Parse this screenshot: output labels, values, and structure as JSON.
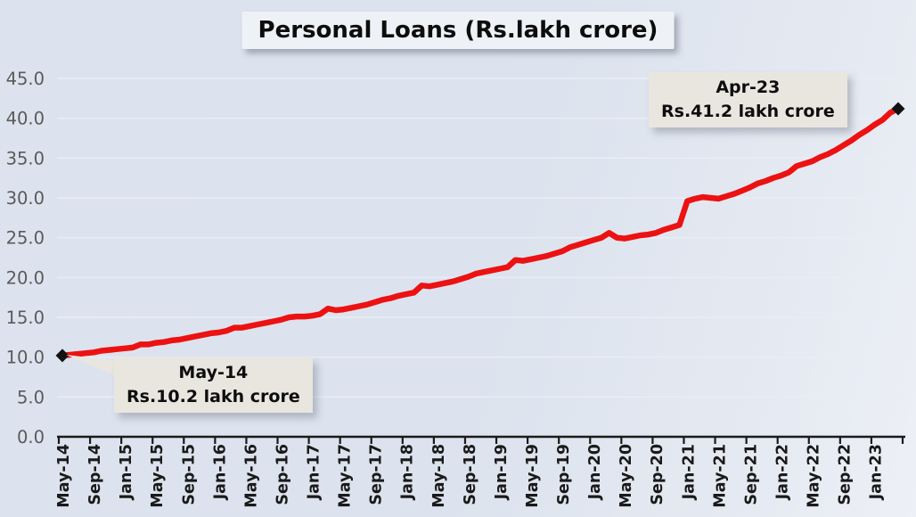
{
  "title": "Personal Loans (Rs.lakh crore)",
  "annotations": {
    "start": {
      "period": "May-14",
      "value_text": "Rs.10.2 lakh crore"
    },
    "end": {
      "period": "Apr-23",
      "value_text": "Rs.41.2 lakh crore"
    }
  },
  "colors": {
    "background": "#dce3ee",
    "gridline": "#e8edf5",
    "axis": "#1a1a1a",
    "y_label": "#5a5a5a",
    "x_label": "#1a1a1a",
    "line": "#ec1212",
    "marker": "#111111",
    "title_box": "#eef1f6",
    "annotation_box": "#e9e6e0"
  },
  "chart_data": {
    "type": "line",
    "title": "Personal Loans (Rs.lakh crore)",
    "unit": "Rs. lakh crore",
    "x_interval_between_points": "1 month",
    "x_start": "May-14",
    "x_end": "Apr-23",
    "x_tick_labels": [
      "May-14",
      "Sep-14",
      "Jan-15",
      "May-15",
      "Sep-15",
      "Jan-16",
      "May-16",
      "Sep-16",
      "Jan-17",
      "May-17",
      "Sep-17",
      "Jan-18",
      "May-18",
      "Sep-18",
      "Jan-19",
      "May-19",
      "Sep-19",
      "Jan-20",
      "May-20",
      "Sep-20",
      "Jan-21",
      "May-21",
      "Sep-21",
      "Jan-22",
      "May-22",
      "Sep-22",
      "Jan-23"
    ],
    "x_tick_interval_months": 4,
    "y_tick_labels": [
      "0.0",
      "5.0",
      "10.0",
      "15.0",
      "20.0",
      "25.0",
      "30.0",
      "35.0",
      "40.0",
      "45.0"
    ],
    "ylim": [
      0,
      45
    ],
    "grid": true,
    "legend": false,
    "series": [
      {
        "name": "Personal Loans",
        "color": "#ec1212",
        "values": [
          10.2,
          10.3,
          10.4,
          10.5,
          10.6,
          10.8,
          10.9,
          11.0,
          11.1,
          11.2,
          11.6,
          11.6,
          11.8,
          11.9,
          12.1,
          12.2,
          12.4,
          12.6,
          12.8,
          13.0,
          13.1,
          13.3,
          13.7,
          13.7,
          13.9,
          14.1,
          14.3,
          14.5,
          14.7,
          15.0,
          15.1,
          15.1,
          15.2,
          15.4,
          16.1,
          15.9,
          16.0,
          16.2,
          16.4,
          16.6,
          16.9,
          17.2,
          17.4,
          17.7,
          17.9,
          18.1,
          19.0,
          18.9,
          19.1,
          19.3,
          19.5,
          19.8,
          20.1,
          20.5,
          20.7,
          20.9,
          21.1,
          21.3,
          22.2,
          22.1,
          22.3,
          22.5,
          22.7,
          23.0,
          23.3,
          23.8,
          24.1,
          24.4,
          24.7,
          25.0,
          25.6,
          25.0,
          24.9,
          25.1,
          25.3,
          25.4,
          25.6,
          26.0,
          26.3,
          26.6,
          29.6,
          29.9,
          30.1,
          30.0,
          29.9,
          30.2,
          30.5,
          30.9,
          31.3,
          31.8,
          32.1,
          32.5,
          32.8,
          33.2,
          34.0,
          34.3,
          34.6,
          35.1,
          35.5,
          36.0,
          36.6,
          37.2,
          37.9,
          38.5,
          39.2,
          39.8,
          40.7,
          41.2
        ]
      }
    ],
    "highlighted_points": [
      {
        "x": "May-14",
        "y": 10.2
      },
      {
        "x": "Apr-23",
        "y": 41.2
      }
    ]
  }
}
